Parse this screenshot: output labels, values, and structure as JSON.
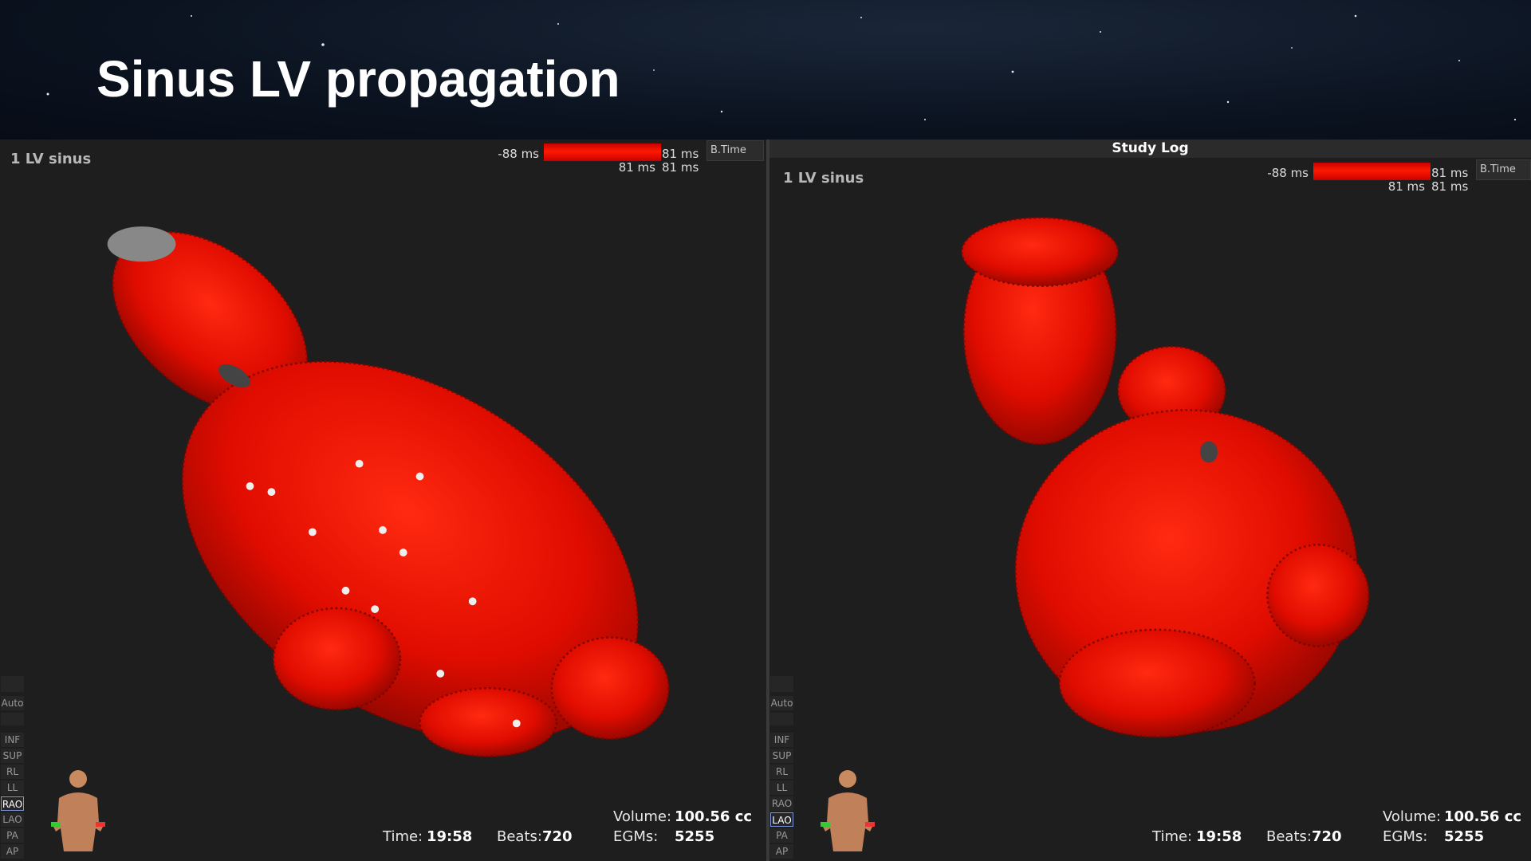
{
  "title": "Sinus LV propagation",
  "study_log_title": "Study Log",
  "panels": [
    {
      "map_name": "1 LV sinus",
      "scale": {
        "min": "-88 ms",
        "max": "81 ms",
        "sub": [
          "81 ms",
          "81 ms"
        ]
      },
      "mode": "B.Time",
      "views": [
        "Auto",
        "INF",
        "SUP",
        "RL",
        "LL",
        "RAO",
        "LAO",
        "PA",
        "AP"
      ],
      "active_view": "RAO",
      "stats": {
        "time_label": "Time:",
        "time": "19:58",
        "beats_label": "Beats:",
        "beats": 720,
        "volume_label": "Volume:",
        "volume": "100.56 cc",
        "egms_label": "EGMs:",
        "egms": 5255
      }
    },
    {
      "map_name": "1 LV sinus",
      "scale": {
        "min": "-88 ms",
        "max": "81 ms",
        "sub": [
          "81 ms",
          "81 ms"
        ]
      },
      "mode": "B.Time",
      "views": [
        "Auto",
        "INF",
        "SUP",
        "RL",
        "LL",
        "RAO",
        "LAO",
        "PA",
        "AP"
      ],
      "active_view": "LAO",
      "stats": {
        "time_label": "Time:",
        "time": "19:58",
        "beats_label": "Beats:",
        "beats": 720,
        "volume_label": "Volume:",
        "volume": "100.56 cc",
        "egms_label": "EGMs:",
        "egms": 5255
      }
    }
  ]
}
